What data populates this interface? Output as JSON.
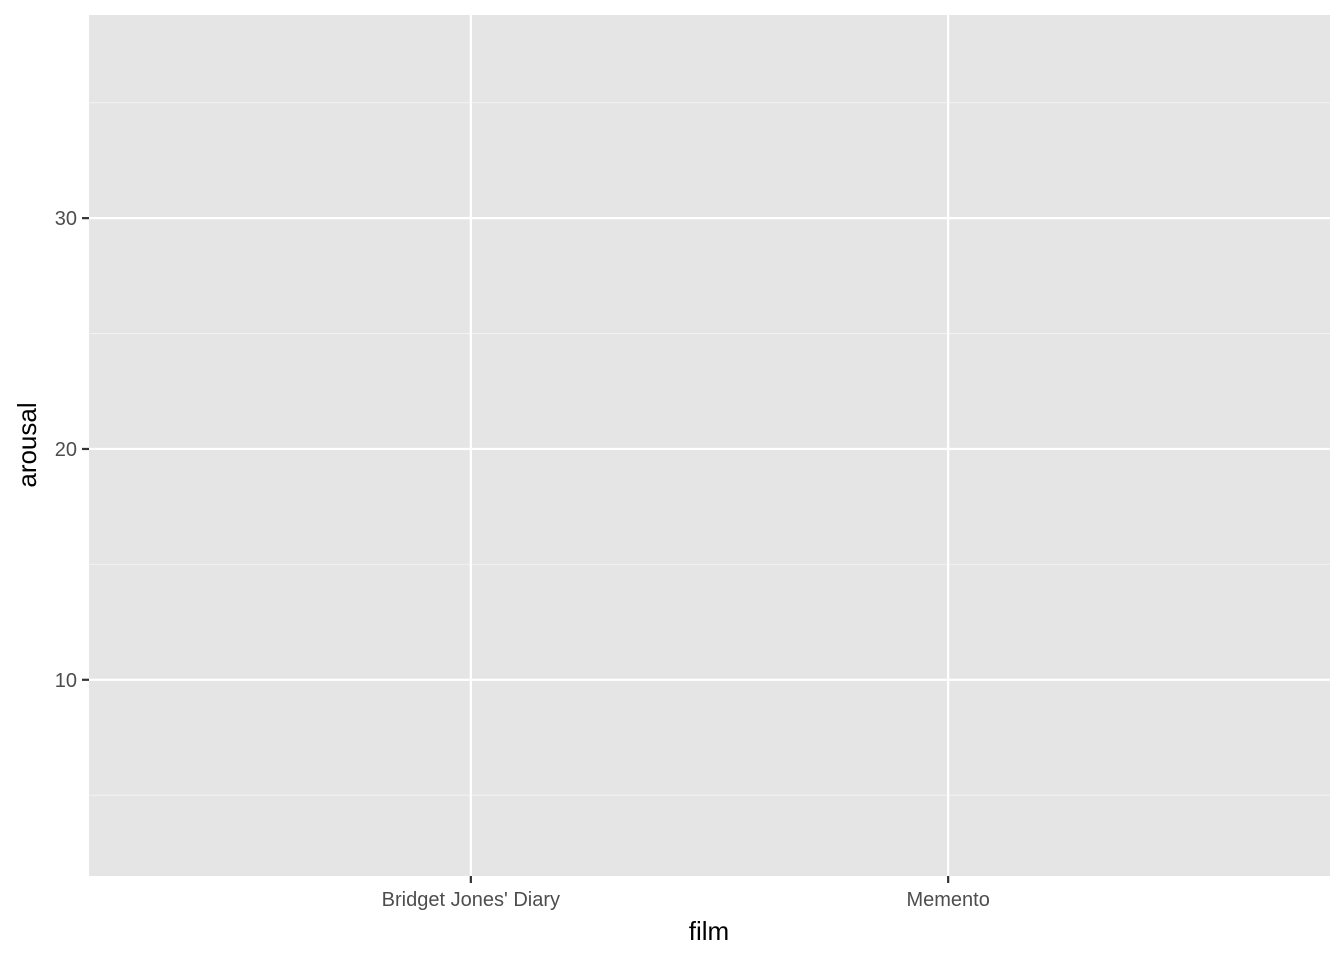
{
  "chart_data": {
    "type": "bar",
    "title": "",
    "xlabel": "film",
    "ylabel": "arousal",
    "categories": [
      "Bridget Jones' Diary",
      "Memento"
    ],
    "series": [],
    "ylim": [
      1.5,
      38.8
    ],
    "yticks": [
      10,
      20,
      30
    ],
    "yticks_minor": [
      5,
      15,
      25,
      35
    ],
    "ytick_labels": [
      "10",
      "20",
      "30"
    ],
    "grid": true,
    "legend": "none",
    "colors": {
      "panel_background": "#E5E5E5",
      "grid_major": "#FFFFFF",
      "grid_minor": "#F2F2F2",
      "tick_mark": "#333333",
      "tick_label": "#4D4D4D",
      "axis_title": "#000000"
    }
  }
}
